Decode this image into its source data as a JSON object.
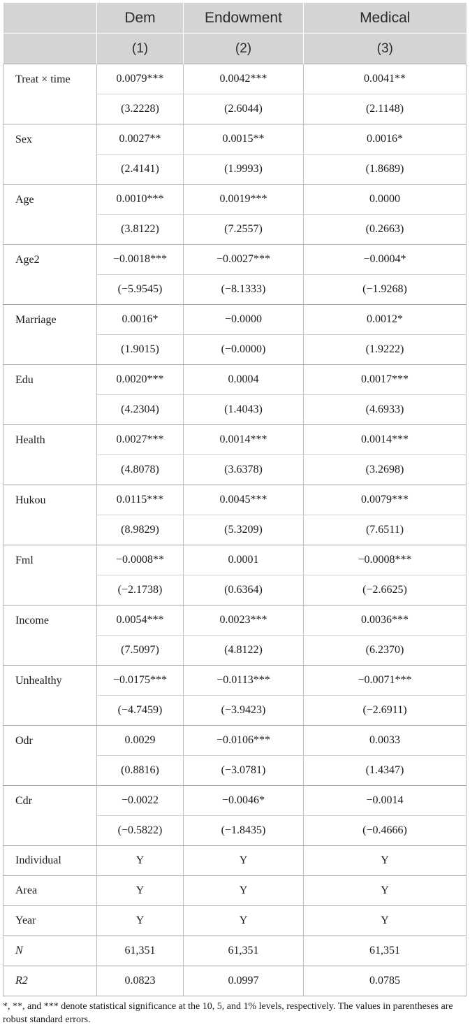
{
  "header": {
    "row1": [
      "",
      "Dem",
      "Endowment",
      "Medical"
    ],
    "row2": [
      "",
      "(1)",
      "(2)",
      "(3)"
    ]
  },
  "coef_rows": [
    {
      "var": "Treat × time",
      "coef": [
        "0.0079***",
        "0.0042***",
        "0.0041**"
      ],
      "se": [
        "(3.2228)",
        "(2.6044)",
        "(2.1148)"
      ]
    },
    {
      "var": "Sex",
      "coef": [
        "0.0027**",
        "0.0015**",
        "0.0016*"
      ],
      "se": [
        "(2.4141)",
        "(1.9993)",
        "(1.8689)"
      ]
    },
    {
      "var": "Age",
      "coef": [
        "0.0010***",
        "0.0019***",
        "0.0000"
      ],
      "se": [
        "(3.8122)",
        "(7.2557)",
        "(0.2663)"
      ]
    },
    {
      "var": "Age2",
      "coef": [
        "−0.0018***",
        "−0.0027***",
        "−0.0004*"
      ],
      "se": [
        "(−5.9545)",
        "(−8.1333)",
        "(−1.9268)"
      ]
    },
    {
      "var": "Marriage",
      "coef": [
        "0.0016*",
        "−0.0000",
        "0.0012*"
      ],
      "se": [
        "(1.9015)",
        "(−0.0000)",
        "(1.9222)"
      ]
    },
    {
      "var": "Edu",
      "coef": [
        "0.0020***",
        "0.0004",
        "0.0017***"
      ],
      "se": [
        "(4.2304)",
        "(1.4043)",
        "(4.6933)"
      ]
    },
    {
      "var": "Health",
      "coef": [
        "0.0027***",
        "0.0014***",
        "0.0014***"
      ],
      "se": [
        "(4.8078)",
        "(3.6378)",
        "(3.2698)"
      ]
    },
    {
      "var": "Hukou",
      "coef": [
        "0.0115***",
        "0.0045***",
        "0.0079***"
      ],
      "se": [
        "(8.9829)",
        "(5.3209)",
        "(7.6511)"
      ]
    },
    {
      "var": "Fml",
      "coef": [
        "−0.0008**",
        "0.0001",
        "−0.0008***"
      ],
      "se": [
        "(−2.1738)",
        "(0.6364)",
        "(−2.6625)"
      ]
    },
    {
      "var": "Income",
      "coef": [
        "0.0054***",
        "0.0023***",
        "0.0036***"
      ],
      "se": [
        "(7.5097)",
        "(4.8122)",
        "(6.2370)"
      ]
    },
    {
      "var": "Unhealthy",
      "coef": [
        "−0.0175***",
        "−0.0113***",
        "−0.0071***"
      ],
      "se": [
        "(−4.7459)",
        "(−3.9423)",
        "(−2.6911)"
      ]
    },
    {
      "var": "Odr",
      "coef": [
        "0.0029",
        "−0.0106***",
        "0.0033"
      ],
      "se": [
        "(0.8816)",
        "(−3.0781)",
        "(1.4347)"
      ]
    },
    {
      "var": "Cdr",
      "coef": [
        "−0.0022",
        "−0.0046*",
        "−0.0014"
      ],
      "se": [
        "(−0.5822)",
        "(−1.8435)",
        "(−0.4666)"
      ]
    }
  ],
  "single_rows": [
    {
      "var": "Individual",
      "vals": [
        "Y",
        "Y",
        "Y"
      ],
      "italic": false
    },
    {
      "var": "Area",
      "vals": [
        "Y",
        "Y",
        "Y"
      ],
      "italic": false
    },
    {
      "var": "Year",
      "vals": [
        "Y",
        "Y",
        "Y"
      ],
      "italic": false
    },
    {
      "var": "N",
      "vals": [
        "61,351",
        "61,351",
        "61,351"
      ],
      "italic": true
    },
    {
      "var": "R2",
      "vals": [
        "0.0823",
        "0.0997",
        "0.0785"
      ],
      "italic": true
    }
  ],
  "note": "*, **, and *** denote statistical significance at the 10, 5, and 1% levels, respectively. The values in parentheses are robust standard errors."
}
